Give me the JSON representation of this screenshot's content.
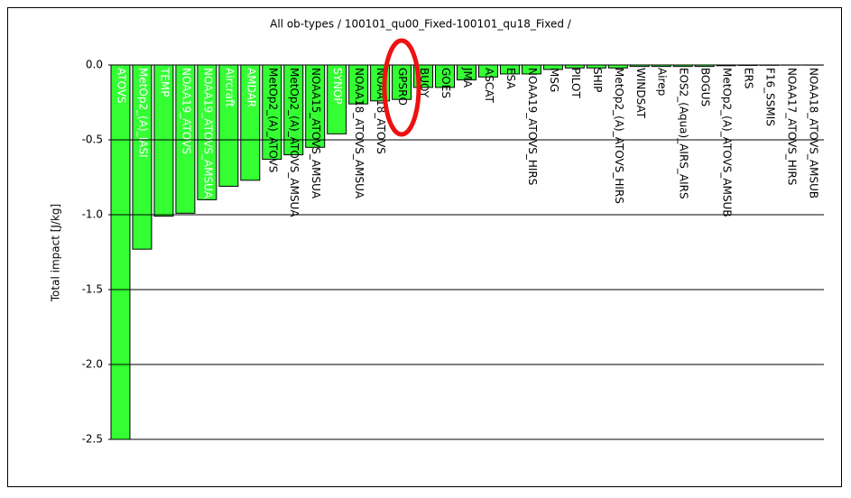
{
  "chart_data": {
    "type": "bar",
    "title": "All ob-types / 100101_qu00_Fixed-100101_qu18_Fixed /",
    "y_label": "Total impact [J/kg]",
    "categories": [
      "ATOVS",
      "MetOp2_(A)_IASI",
      "TEMP",
      "NOAA19_ATOVS",
      "NOAA19_ATOVS_AMSUA",
      "Aircraft",
      "AMDAR",
      "MetOp2_(A)_ATOVS",
      "MetOp2_(A)_ATOVS_AMSUA",
      "NOAA15_ATOVS_AMSUA",
      "SYNOP",
      "NOAA18_ATOVS_AMSUA",
      "NOAA18_ATOVS",
      "GPSRO",
      "BUOY",
      "GOES",
      "JMA",
      "ASCAT",
      "ESA",
      "NOAA19_ATOVS_HIRS",
      "MSG",
      "PILOT",
      "SHIP",
      "MetOp2_(A)_ATOVS_HIRS",
      "WINDSAT",
      "Airep",
      "EOS2_(Aqua)_AIRS_AIRS",
      "BOGUS",
      "MetOp2_(A)_ATOVS_AMSUB",
      "ERS",
      "F16_SSMIS",
      "NOAA17_ATOVS_HIRS",
      "NOAA18_ATOVS_AMSUB"
    ],
    "values": [
      -2.5,
      -1.23,
      -1.01,
      -0.99,
      -0.9,
      -0.81,
      -0.77,
      -0.63,
      -0.6,
      -0.55,
      -0.46,
      -0.26,
      -0.24,
      -0.23,
      -0.15,
      -0.15,
      -0.1,
      -0.08,
      -0.06,
      -0.06,
      -0.03,
      -0.02,
      -0.02,
      -0.02,
      -0.01,
      -0.01,
      -0.01,
      -0.01,
      -0.005,
      -0.003,
      -0.002,
      -0.001,
      -0.001
    ],
    "color": "#33ff33",
    "ylim": [
      -2.5,
      0
    ],
    "yticks": [
      {
        "value": 0,
        "label": "0.0"
      },
      {
        "value": -0.5,
        "label": "-0.5"
      },
      {
        "value": -1,
        "label": "-1.0"
      },
      {
        "value": -1.5,
        "label": "-1.5"
      },
      {
        "value": -2,
        "label": "-2.0"
      },
      {
        "value": -2.5,
        "label": "-2.5"
      }
    ],
    "grid": true
  }
}
